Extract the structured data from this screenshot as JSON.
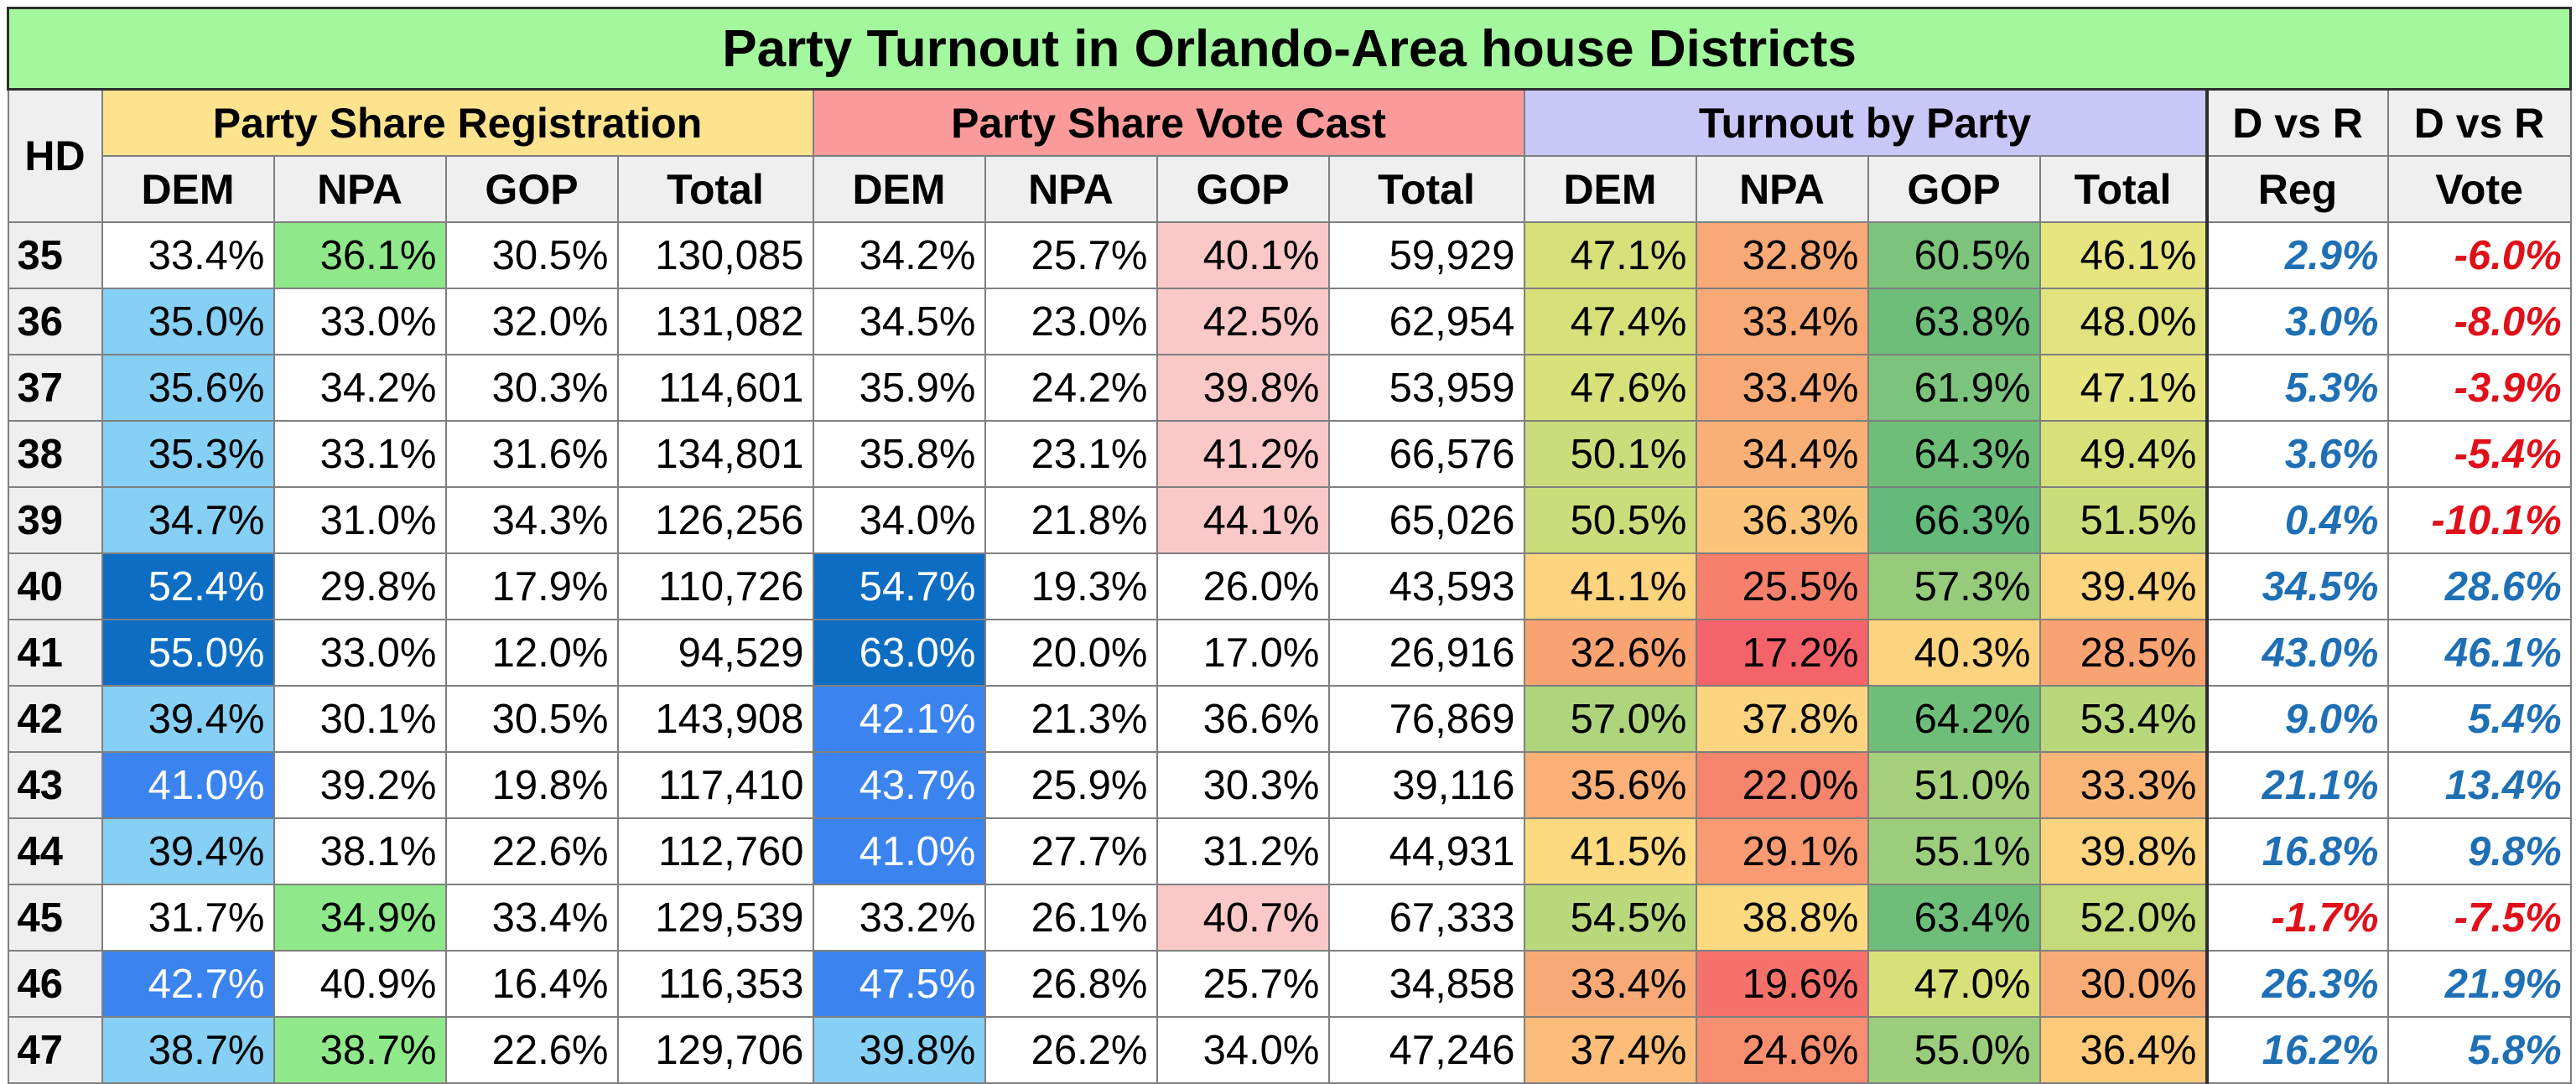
{
  "title": "Party Turnout in Orlando-Area house Districts",
  "hd_header": "HD",
  "groups": {
    "registration": "Party Share Registration",
    "vote": "Party Share Vote Cast",
    "turnout": "Turnout by Party",
    "dvr_reg_line1": "D vs R",
    "dvr_reg_line2": "Reg",
    "dvr_vote_line1": "D vs R",
    "dvr_vote_line2": "Vote"
  },
  "subheaders": [
    "DEM",
    "NPA",
    "GOP",
    "Total"
  ],
  "colors": {
    "title_bg": "#a3f79d",
    "registration_header_bg": "#fde38e",
    "vote_header_bg": "#fb9a9a",
    "turnout_header_bg": "#c8c7f7",
    "positive_text": "#1f6fb5",
    "negative_text": "#e0101a",
    "npa_highlight": "#8fe98a",
    "gop_vote_highlight": "#fbc8c8"
  },
  "chart_data": {
    "type": "table",
    "title": "Party Turnout in Orlando-Area house Districts",
    "columns": [
      "HD",
      "Reg DEM",
      "Reg NPA",
      "Reg GOP",
      "Reg Total",
      "Vote DEM",
      "Vote NPA",
      "Vote GOP",
      "Vote Total",
      "Turnout DEM",
      "Turnout NPA",
      "Turnout GOP",
      "Turnout Total",
      "D vs R Reg",
      "D vs R Vote"
    ],
    "rows": [
      {
        "hd": "35",
        "reg": [
          "33.4%",
          "36.1%",
          "30.5%",
          "130,085"
        ],
        "vote": [
          "34.2%",
          "25.7%",
          "40.1%",
          "59,929"
        ],
        "turnout": [
          "47.1%",
          "32.8%",
          "60.5%",
          "46.1%"
        ],
        "dvr_reg": "2.9%",
        "dvr_vote": "-6.0%"
      },
      {
        "hd": "36",
        "reg": [
          "35.0%",
          "33.0%",
          "32.0%",
          "131,082"
        ],
        "vote": [
          "34.5%",
          "23.0%",
          "42.5%",
          "62,954"
        ],
        "turnout": [
          "47.4%",
          "33.4%",
          "63.8%",
          "48.0%"
        ],
        "dvr_reg": "3.0%",
        "dvr_vote": "-8.0%"
      },
      {
        "hd": "37",
        "reg": [
          "35.6%",
          "34.2%",
          "30.3%",
          "114,601"
        ],
        "vote": [
          "35.9%",
          "24.2%",
          "39.8%",
          "53,959"
        ],
        "turnout": [
          "47.6%",
          "33.4%",
          "61.9%",
          "47.1%"
        ],
        "dvr_reg": "5.3%",
        "dvr_vote": "-3.9%"
      },
      {
        "hd": "38",
        "reg": [
          "35.3%",
          "33.1%",
          "31.6%",
          "134,801"
        ],
        "vote": [
          "35.8%",
          "23.1%",
          "41.2%",
          "66,576"
        ],
        "turnout": [
          "50.1%",
          "34.4%",
          "64.3%",
          "49.4%"
        ],
        "dvr_reg": "3.6%",
        "dvr_vote": "-5.4%"
      },
      {
        "hd": "39",
        "reg": [
          "34.7%",
          "31.0%",
          "34.3%",
          "126,256"
        ],
        "vote": [
          "34.0%",
          "21.8%",
          "44.1%",
          "65,026"
        ],
        "turnout": [
          "50.5%",
          "36.3%",
          "66.3%",
          "51.5%"
        ],
        "dvr_reg": "0.4%",
        "dvr_vote": "-10.1%"
      },
      {
        "hd": "40",
        "reg": [
          "52.4%",
          "29.8%",
          "17.9%",
          "110,726"
        ],
        "vote": [
          "54.7%",
          "19.3%",
          "26.0%",
          "43,593"
        ],
        "turnout": [
          "41.1%",
          "25.5%",
          "57.3%",
          "39.4%"
        ],
        "dvr_reg": "34.5%",
        "dvr_vote": "28.6%"
      },
      {
        "hd": "41",
        "reg": [
          "55.0%",
          "33.0%",
          "12.0%",
          "94,529"
        ],
        "vote": [
          "63.0%",
          "20.0%",
          "17.0%",
          "26,916"
        ],
        "turnout": [
          "32.6%",
          "17.2%",
          "40.3%",
          "28.5%"
        ],
        "dvr_reg": "43.0%",
        "dvr_vote": "46.1%"
      },
      {
        "hd": "42",
        "reg": [
          "39.4%",
          "30.1%",
          "30.5%",
          "143,908"
        ],
        "vote": [
          "42.1%",
          "21.3%",
          "36.6%",
          "76,869"
        ],
        "turnout": [
          "57.0%",
          "37.8%",
          "64.2%",
          "53.4%"
        ],
        "dvr_reg": "9.0%",
        "dvr_vote": "5.4%"
      },
      {
        "hd": "43",
        "reg": [
          "41.0%",
          "39.2%",
          "19.8%",
          "117,410"
        ],
        "vote": [
          "43.7%",
          "25.9%",
          "30.3%",
          "39,116"
        ],
        "turnout": [
          "35.6%",
          "22.0%",
          "51.0%",
          "33.3%"
        ],
        "dvr_reg": "21.1%",
        "dvr_vote": "13.4%"
      },
      {
        "hd": "44",
        "reg": [
          "39.4%",
          "38.1%",
          "22.6%",
          "112,760"
        ],
        "vote": [
          "41.0%",
          "27.7%",
          "31.2%",
          "44,931"
        ],
        "turnout": [
          "41.5%",
          "29.1%",
          "55.1%",
          "39.8%"
        ],
        "dvr_reg": "16.8%",
        "dvr_vote": "9.8%"
      },
      {
        "hd": "45",
        "reg": [
          "31.7%",
          "34.9%",
          "33.4%",
          "129,539"
        ],
        "vote": [
          "33.2%",
          "26.1%",
          "40.7%",
          "67,333"
        ],
        "turnout": [
          "54.5%",
          "38.8%",
          "63.4%",
          "52.0%"
        ],
        "dvr_reg": "-1.7%",
        "dvr_vote": "-7.5%"
      },
      {
        "hd": "46",
        "reg": [
          "42.7%",
          "40.9%",
          "16.4%",
          "116,353"
        ],
        "vote": [
          "47.5%",
          "26.8%",
          "25.7%",
          "34,858"
        ],
        "turnout": [
          "33.4%",
          "19.6%",
          "47.0%",
          "30.0%"
        ],
        "dvr_reg": "26.3%",
        "dvr_vote": "21.9%"
      },
      {
        "hd": "47",
        "reg": [
          "38.7%",
          "38.7%",
          "22.6%",
          "129,706"
        ],
        "vote": [
          "39.8%",
          "26.2%",
          "34.0%",
          "47,246"
        ],
        "turnout": [
          "37.4%",
          "24.6%",
          "55.0%",
          "36.4%"
        ],
        "dvr_reg": "16.2%",
        "dvr_vote": "5.8%"
      }
    ],
    "cell_fills": {
      "reg_dem": [
        "",
        "#86cff5",
        "#86cff5",
        "#86cff5",
        "#86cff5",
        "#0d6dc3",
        "#0d6dc3",
        "#86cff5",
        "#3b84f0",
        "#86cff5",
        "",
        "#3b84f0",
        "#86cff5"
      ],
      "reg_npa": [
        "#8fe98a",
        "",
        "",
        "",
        "",
        "",
        "",
        "",
        "",
        "",
        "#8fe98a",
        "",
        "#8fe98a"
      ],
      "vote_dem": [
        "",
        "",
        "",
        "",
        "",
        "#0d6dc3",
        "#0d6dc3",
        "#3b84f0",
        "#3b84f0",
        "#3b84f0",
        "",
        "#3b84f0",
        "#86cff5"
      ],
      "vote_gop": [
        "#fbc8c8",
        "#fbc8c8",
        "#fbc8c8",
        "#fbc8c8",
        "#fbc8c8",
        "",
        "",
        "",
        "",
        "",
        "#fbc8c8",
        "",
        ""
      ],
      "turnout_dem": [
        "#d8e07a",
        "#d8e07a",
        "#d8e07a",
        "#cbdc7a",
        "#cbdc7a",
        "#fcd37e",
        "#f9a373",
        "#aed47c",
        "#fbb077",
        "#fdd97f",
        "#b9d87b",
        "#f9a975",
        "#fbbd79"
      ],
      "turnout_npa": [
        "#f9a975",
        "#f9a975",
        "#f9a975",
        "#f9b077",
        "#fbc47a",
        "#f7806c",
        "#f4636a",
        "#fcd37e",
        "#f7846c",
        "#f99a72",
        "#fdd97f",
        "#f7716b",
        "#f78e6f"
      ],
      "turnout_gop": [
        "#7cc37b",
        "#6ebe7a",
        "#7cc37b",
        "#6ebe7a",
        "#63ba7a",
        "#95cb7b",
        "#fcd37e",
        "#6ebe7a",
        "#a6d07c",
        "#9ccd7c",
        "#6ebe7a",
        "#d8e07a",
        "#9ccd7c"
      ],
      "turnout_total": [
        "#e6e57f",
        "#e1e37e",
        "#e6e57f",
        "#d8e07a",
        "#cbdc7a",
        "#fcd37e",
        "#f9a373",
        "#b9d87b",
        "#fbb577",
        "#fcd37e",
        "#c4da7b",
        "#f9ab75",
        "#fdc97a"
      ]
    }
  }
}
